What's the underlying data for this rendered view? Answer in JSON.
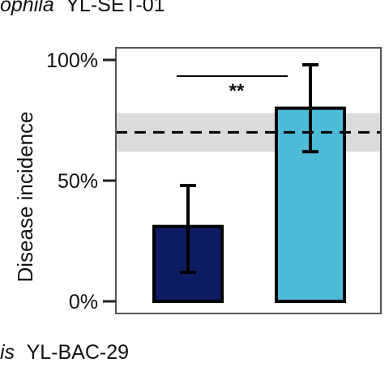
{
  "header": {
    "italic_prefix": "ophila",
    "text": "YL-SET-01"
  },
  "footer": {
    "italic_prefix": "is",
    "text": "YL-BAC-29"
  },
  "chart_data": {
    "type": "bar",
    "ylabel": "Disease incidence",
    "ylim": [
      0,
      100
    ],
    "yticks": [
      {
        "value": 0,
        "label": "0%"
      },
      {
        "value": 50,
        "label": "50%"
      },
      {
        "value": 100,
        "label": "100%"
      }
    ],
    "bars": [
      {
        "value": 31,
        "error_low": 12,
        "error_high": 48,
        "color": "#0d1d62"
      },
      {
        "value": 80,
        "error_low": 62,
        "error_high": 98,
        "color": "#4dbbd8"
      }
    ],
    "reference": {
      "value": 70,
      "band_low": 62,
      "band_high": 78,
      "line_style": "dashed",
      "band_color": "#d9d9d9"
    },
    "significance": {
      "label": "**"
    },
    "grid": false
  }
}
